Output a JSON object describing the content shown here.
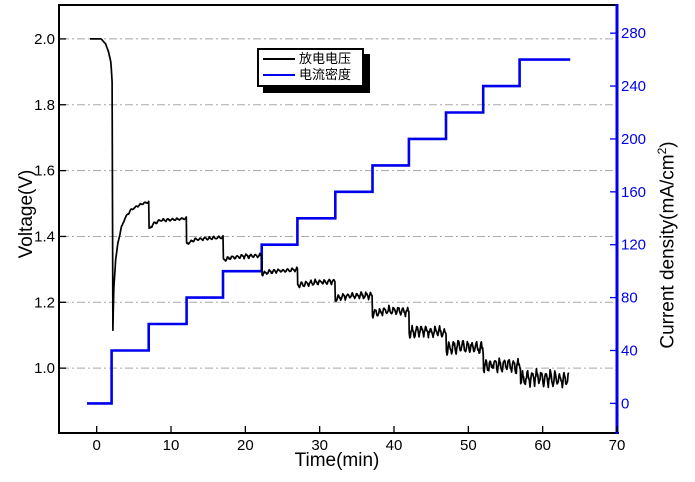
{
  "figure": {
    "background": "#ffffff"
  },
  "legend": {
    "items": [
      {
        "label": "放电电压",
        "color": "#000000"
      },
      {
        "label": "电流密度",
        "color": "#0000ee"
      }
    ]
  },
  "chart_data": {
    "type": "line",
    "title": "",
    "grid": {
      "show": true,
      "color": "#a9a9a9",
      "style": "dash-dot",
      "orientation": "horizontal"
    },
    "legend_position": "top-center",
    "axes": {
      "x": {
        "label": "Time(min)",
        "min": -5.07,
        "max": 70,
        "ticks": [
          "0",
          "10",
          "20",
          "30",
          "40",
          "50",
          "60",
          "70"
        ],
        "color": "#000000"
      },
      "left": {
        "label": "Voltage(V)",
        "min": 0.803,
        "max": 2.103,
        "ticks": [
          "1.0",
          "1.2",
          "1.4",
          "1.6",
          "1.8",
          "2.0"
        ],
        "color": "#000000"
      },
      "right": {
        "label": "Current density(mA/cm²)",
        "label_main": "Current density(mA/cm",
        "label_sup": "2",
        "label_end": ")",
        "min": -22.4,
        "max": 301.3,
        "ticks": [
          "0",
          "40",
          "80",
          "120",
          "160",
          "200",
          "240",
          "280"
        ],
        "color": "#0000ee"
      }
    },
    "series": [
      {
        "name": "放电电压",
        "axis": "left",
        "color": "#000000",
        "width": 1.7,
        "style": "noisy-line",
        "segments": [
          {
            "noise": 0,
            "pts": [
              [
                -0.9,
                2.0
              ],
              [
                0.6,
                2.0
              ],
              [
                1.2,
                1.985
              ],
              [
                1.6,
                1.96
              ],
              [
                1.9,
                1.93
              ],
              [
                2.08,
                1.87
              ]
            ]
          },
          {
            "noise": 0,
            "pts": [
              [
                2.08,
                1.87
              ],
              [
                2.18,
                1.115
              ]
            ]
          },
          {
            "noise": 0.003,
            "pts": [
              [
                2.18,
                1.115
              ],
              [
                2.3,
                1.24
              ],
              [
                2.55,
                1.33
              ],
              [
                2.9,
                1.385
              ],
              [
                3.3,
                1.425
              ],
              [
                3.8,
                1.455
              ],
              [
                4.5,
                1.478
              ],
              [
                5.3,
                1.49
              ],
              [
                6.2,
                1.5
              ],
              [
                7.0,
                1.505
              ]
            ]
          },
          {
            "noise": 0.004,
            "pts": [
              [
                7.05,
                1.422
              ],
              [
                7.7,
                1.44
              ],
              [
                8.6,
                1.449
              ],
              [
                10.5,
                1.452
              ],
              [
                12.05,
                1.455
              ]
            ]
          },
          {
            "noise": 0.005,
            "pts": [
              [
                12.1,
                1.378
              ],
              [
                13.2,
                1.39
              ],
              [
                15.0,
                1.394
              ],
              [
                17.0,
                1.398
              ]
            ]
          },
          {
            "noise": 0.006,
            "pts": [
              [
                17.05,
                1.328
              ],
              [
                18.2,
                1.337
              ],
              [
                20.0,
                1.34
              ],
              [
                22.2,
                1.342
              ]
            ]
          },
          {
            "noise": 0.006,
            "pts": [
              [
                22.25,
                1.287
              ],
              [
                23.6,
                1.294
              ],
              [
                25.5,
                1.297
              ],
              [
                27.0,
                1.299
              ]
            ]
          },
          {
            "noise": 0.008,
            "pts": [
              [
                27.05,
                1.25
              ],
              [
                28.6,
                1.259
              ],
              [
                30.5,
                1.262
              ],
              [
                32.05,
                1.263
              ]
            ]
          },
          {
            "noise": 0.011,
            "pts": [
              [
                32.1,
                1.21
              ],
              [
                33.6,
                1.219
              ],
              [
                35.5,
                1.221
              ],
              [
                37.05,
                1.22
              ]
            ]
          },
          {
            "noise": 0.014,
            "pts": [
              [
                37.1,
                1.165
              ],
              [
                38.6,
                1.174
              ],
              [
                40.5,
                1.174
              ],
              [
                42.0,
                1.17
              ]
            ]
          },
          {
            "noise": 0.017,
            "pts": [
              [
                42.05,
                1.108
              ],
              [
                43.6,
                1.114
              ],
              [
                45.5,
                1.112
              ],
              [
                47.0,
                1.107
              ]
            ]
          },
          {
            "noise": 0.02,
            "pts": [
              [
                47.05,
                1.06
              ],
              [
                48.6,
                1.067
              ],
              [
                50.5,
                1.065
              ],
              [
                52.0,
                1.06
              ]
            ]
          },
          {
            "noise": 0.023,
            "pts": [
              [
                52.05,
                1.005
              ],
              [
                53.6,
                1.011
              ],
              [
                55.5,
                1.009
              ],
              [
                57.0,
                1.004
              ]
            ]
          },
          {
            "noise": 0.025,
            "pts": [
              [
                57.05,
                0.966
              ],
              [
                58.6,
                0.971
              ],
              [
                61.0,
                0.969
              ],
              [
                63.5,
                0.966
              ]
            ]
          }
        ]
      },
      {
        "name": "电流密度",
        "axis": "right",
        "color": "#0000ee",
        "width": 2.6,
        "style": "staircase",
        "levels": [
          [
            -1.3,
            2.0,
            0
          ],
          [
            2.0,
            7.0,
            40
          ],
          [
            7.0,
            12.1,
            60
          ],
          [
            12.1,
            17.0,
            80
          ],
          [
            17.0,
            22.2,
            100
          ],
          [
            22.2,
            27.0,
            120
          ],
          [
            27.0,
            32.1,
            140
          ],
          [
            32.1,
            37.1,
            160
          ],
          [
            37.1,
            42.0,
            180
          ],
          [
            42.0,
            47.0,
            200
          ],
          [
            47.0,
            52.0,
            220
          ],
          [
            52.0,
            56.9,
            240
          ],
          [
            56.9,
            63.7,
            260
          ]
        ]
      }
    ]
  }
}
